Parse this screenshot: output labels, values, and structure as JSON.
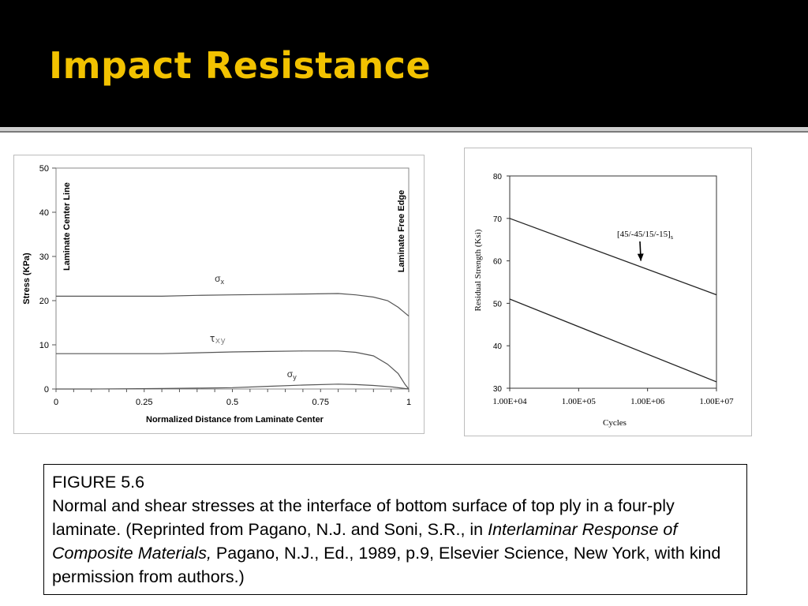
{
  "slide": {
    "title": "Impact Resistance"
  },
  "chart_data": [
    {
      "type": "line",
      "title": "",
      "xlabel": "Normalized Distance from Laminate Center",
      "ylabel": "Stress (KPa)",
      "xlim": [
        0,
        1
      ],
      "ylim": [
        0,
        50
      ],
      "x_ticks": [
        "0",
        "0.25",
        "0.5",
        "0.75",
        "1"
      ],
      "y_ticks": [
        "0",
        "10",
        "20",
        "30",
        "40",
        "50"
      ],
      "grid": false,
      "annotations": {
        "center_line": "Laminate  Center  Line",
        "free_edge": "Laminate  Free Edge"
      },
      "series": [
        {
          "name": "σx",
          "x": [
            0,
            0.1,
            0.2,
            0.3,
            0.4,
            0.5,
            0.6,
            0.7,
            0.8,
            0.85,
            0.9,
            0.94,
            0.97,
            1.0
          ],
          "y": [
            21,
            21,
            21,
            21,
            21.2,
            21.3,
            21.4,
            21.5,
            21.6,
            21.3,
            20.8,
            20,
            18.5,
            16.5
          ]
        },
        {
          "name": "τxy",
          "x": [
            0,
            0.1,
            0.2,
            0.3,
            0.4,
            0.5,
            0.6,
            0.7,
            0.8,
            0.85,
            0.9,
            0.94,
            0.97,
            0.99,
            1.0
          ],
          "y": [
            8,
            8,
            8,
            8,
            8.2,
            8.4,
            8.5,
            8.6,
            8.6,
            8.3,
            7.5,
            5.6,
            3.5,
            1,
            0
          ]
        },
        {
          "name": "σy",
          "x": [
            0,
            0.1,
            0.2,
            0.3,
            0.4,
            0.5,
            0.6,
            0.7,
            0.8,
            0.85,
            0.9,
            0.95,
            1.0
          ],
          "y": [
            0,
            0,
            0.05,
            0.1,
            0.2,
            0.3,
            0.6,
            0.9,
            1.1,
            1.0,
            0.8,
            0.5,
            0
          ]
        }
      ]
    },
    {
      "type": "line",
      "title": "",
      "xlabel": "Cycles",
      "ylabel": "Residual Strength (Ksi)",
      "xscale": "log",
      "xlim": [
        10000,
        10000000
      ],
      "ylim": [
        30,
        80
      ],
      "x_ticks": [
        "1.00E+04",
        "1.00E+05",
        "1.00E+06",
        "1.00E+07"
      ],
      "y_ticks": [
        "30",
        "40",
        "50",
        "60",
        "70",
        "80"
      ],
      "grid": false,
      "annotation": {
        "label": "[45/-45/15/-15]",
        "subscript": "s",
        "at": [
          800000,
          60
        ]
      },
      "series": [
        {
          "x": [
            10000,
            10000000
          ],
          "y": [
            70,
            52
          ]
        },
        {
          "x": [
            10000,
            10000000
          ],
          "y": [
            51,
            31.5
          ]
        }
      ]
    }
  ],
  "caption": {
    "figure_label": "FIGURE 5.6",
    "line1": "Normal and shear stresses at the interface of bottom surface of top ply in a four-ply laminate. (Reprinted from Pagano, N.J. and Soni, S.R., in ",
    "book_title": "Interlaminar Response of Composite Materials,",
    "line2": " Pagano, N.J., Ed., 1989, p.9, Elsevier Science, New York, with kind permission from authors.)"
  }
}
